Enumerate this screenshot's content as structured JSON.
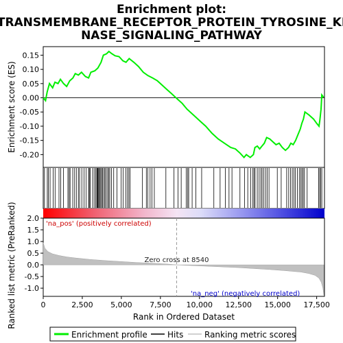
{
  "chart_data": {
    "type": "line",
    "title": "Enrichment plot: TRANSMEMBRANE_RECEPTOR_PROTEIN_TYROSINE_KINASE_SIGNALING_PATHWAY",
    "title_lines": [
      "Enrichment plot:",
      "TRANSMEMBRANE_RECEPTOR_PROTEIN_TYROSINE_KI",
      "NASE_SIGNALING_PATHWAY"
    ],
    "es_panel": {
      "ylabel": "Enrichment score (ES)",
      "ylim": [
        -0.245,
        0.18
      ],
      "yticks": [
        -0.2,
        -0.15,
        -0.1,
        -0.05,
        0.0,
        0.05,
        0.1,
        0.15
      ],
      "ytick_labels": [
        "-0.20",
        "-0.15",
        "-0.10",
        "-0.05",
        "0.00",
        "0.05",
        "0.10",
        "0.15"
      ],
      "line_color": "#00ee00",
      "points": [
        [
          0,
          0.0
        ],
        [
          150,
          -0.01
        ],
        [
          250,
          0.02
        ],
        [
          400,
          0.05
        ],
        [
          600,
          0.035
        ],
        [
          750,
          0.055
        ],
        [
          950,
          0.05
        ],
        [
          1100,
          0.065
        ],
        [
          1300,
          0.05
        ],
        [
          1500,
          0.04
        ],
        [
          1700,
          0.06
        ],
        [
          1900,
          0.07
        ],
        [
          2050,
          0.085
        ],
        [
          2250,
          0.08
        ],
        [
          2450,
          0.09
        ],
        [
          2700,
          0.075
        ],
        [
          2900,
          0.07
        ],
        [
          3050,
          0.09
        ],
        [
          3300,
          0.095
        ],
        [
          3500,
          0.105
        ],
        [
          3700,
          0.125
        ],
        [
          3850,
          0.15
        ],
        [
          4050,
          0.155
        ],
        [
          4200,
          0.163
        ],
        [
          4400,
          0.155
        ],
        [
          4600,
          0.148
        ],
        [
          4850,
          0.145
        ],
        [
          5100,
          0.13
        ],
        [
          5300,
          0.125
        ],
        [
          5500,
          0.138
        ],
        [
          5800,
          0.125
        ],
        [
          6100,
          0.11
        ],
        [
          6400,
          0.09
        ],
        [
          6700,
          0.078
        ],
        [
          7000,
          0.07
        ],
        [
          7300,
          0.06
        ],
        [
          7600,
          0.045
        ],
        [
          7900,
          0.03
        ],
        [
          8200,
          0.015
        ],
        [
          8540,
          -0.002
        ],
        [
          8900,
          -0.02
        ],
        [
          9200,
          -0.04
        ],
        [
          9600,
          -0.06
        ],
        [
          10000,
          -0.08
        ],
        [
          10400,
          -0.1
        ],
        [
          10800,
          -0.125
        ],
        [
          11200,
          -0.145
        ],
        [
          11600,
          -0.16
        ],
        [
          12000,
          -0.175
        ],
        [
          12300,
          -0.18
        ],
        [
          12600,
          -0.195
        ],
        [
          12850,
          -0.21
        ],
        [
          13000,
          -0.2
        ],
        [
          13250,
          -0.21
        ],
        [
          13450,
          -0.2
        ],
        [
          13550,
          -0.175
        ],
        [
          13700,
          -0.17
        ],
        [
          13850,
          -0.18
        ],
        [
          14000,
          -0.17
        ],
        [
          14150,
          -0.16
        ],
        [
          14300,
          -0.14
        ],
        [
          14500,
          -0.145
        ],
        [
          14700,
          -0.155
        ],
        [
          14900,
          -0.165
        ],
        [
          15100,
          -0.16
        ],
        [
          15300,
          -0.175
        ],
        [
          15500,
          -0.185
        ],
        [
          15700,
          -0.175
        ],
        [
          15850,
          -0.16
        ],
        [
          16000,
          -0.165
        ],
        [
          16150,
          -0.15
        ],
        [
          16300,
          -0.13
        ],
        [
          16450,
          -0.11
        ],
        [
          16550,
          -0.09
        ],
        [
          16650,
          -0.075
        ],
        [
          16750,
          -0.05
        ],
        [
          17000,
          -0.06
        ],
        [
          17300,
          -0.075
        ],
        [
          17500,
          -0.09
        ],
        [
          17650,
          -0.1
        ],
        [
          17700,
          -0.08
        ],
        [
          17780,
          -0.04
        ],
        [
          17830,
          0.01
        ],
        [
          17900,
          0.005
        ],
        [
          17950,
          0.002
        ]
      ]
    },
    "hits_panel": {
      "hit_positions": [
        80,
        260,
        330,
        440,
        640,
        760,
        1010,
        1120,
        1300,
        1580,
        1660,
        1720,
        1890,
        2010,
        2120,
        2250,
        2330,
        2470,
        2610,
        2740,
        2900,
        2950,
        3010,
        3160,
        3260,
        3360,
        3430,
        3470,
        3510,
        3560,
        3610,
        3680,
        3740,
        3800,
        3880,
        3950,
        4030,
        4120,
        4190,
        4260,
        4370,
        4510,
        4720,
        4990,
        5120,
        5280,
        5390,
        5480,
        5560,
        6350,
        6600,
        6690,
        6840,
        6960,
        7110,
        7850,
        8370,
        8630,
        8830,
        9150,
        9250,
        9310,
        9530,
        9770,
        10140,
        10920,
        11320,
        11660,
        11890,
        12080,
        12590,
        12880,
        13090,
        13280,
        13420,
        13490,
        13560,
        13700,
        13820,
        13930,
        14010,
        14120,
        14230,
        14340,
        14450,
        14980,
        15230,
        15580,
        15710,
        15830,
        15940,
        16040,
        16140,
        16270,
        16390,
        16480,
        16560,
        16640,
        16720,
        16890,
        17620,
        17690,
        17760,
        17830
      ]
    },
    "ranking_panel": {
      "ylabel": "Ranked list metric (PreRanked)",
      "xlabel": "Rank in Ordered Dataset",
      "xlim": [
        0,
        18000
      ],
      "xticks": [
        0,
        2500,
        5000,
        7500,
        10000,
        12500,
        15000,
        17500
      ],
      "xtick_labels": [
        "0",
        "2,500",
        "5,000",
        "7,500",
        "10,000",
        "12,500",
        "15,000",
        "17,500"
      ],
      "ylim": [
        -1.35,
        2.0
      ],
      "yticks": [
        -1.0,
        -0.5,
        0.0,
        0.5,
        1.0,
        1.5,
        2.0
      ],
      "ytick_labels": [
        "-1.0",
        "-0.5",
        "0.0",
        "0.5",
        "1.0",
        "1.5",
        "2.0"
      ],
      "fill_color": "#c0c0c0",
      "profile": [
        [
          0,
          0.95
        ],
        [
          100,
          0.72
        ],
        [
          300,
          0.57
        ],
        [
          600,
          0.47
        ],
        [
          1000,
          0.4
        ],
        [
          1500,
          0.34
        ],
        [
          2000,
          0.3
        ],
        [
          3000,
          0.23
        ],
        [
          4000,
          0.18
        ],
        [
          5000,
          0.14
        ],
        [
          6000,
          0.1
        ],
        [
          7000,
          0.07
        ],
        [
          8000,
          0.03
        ],
        [
          8540,
          0.0
        ],
        [
          9500,
          -0.03
        ],
        [
          10500,
          -0.06
        ],
        [
          11500,
          -0.09
        ],
        [
          12500,
          -0.12
        ],
        [
          13500,
          -0.16
        ],
        [
          14500,
          -0.2
        ],
        [
          15500,
          -0.25
        ],
        [
          16500,
          -0.31
        ],
        [
          17000,
          -0.37
        ],
        [
          17400,
          -0.45
        ],
        [
          17650,
          -0.57
        ],
        [
          17800,
          -0.75
        ],
        [
          17900,
          -1.0
        ],
        [
          17960,
          -1.3
        ]
      ],
      "zero_cross_rank": 8540,
      "zero_cross_label": "Zero cross at 8540",
      "pos_label": "'na_pos' (positively correlated)",
      "neg_label": "'na_neg' (negatively correlated)",
      "pos_label_color": "#cc0000",
      "neg_label_color": "#0000cc"
    },
    "legend": {
      "placement": "bottom",
      "items": [
        {
          "label": "Enrichment profile",
          "color": "#00ee00"
        },
        {
          "label": "Hits",
          "color": "#000000"
        },
        {
          "label": "Ranking metric scores",
          "color": "#c0c0c0"
        }
      ]
    }
  }
}
